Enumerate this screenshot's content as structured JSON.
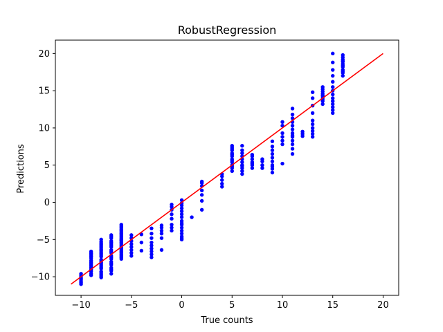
{
  "chart_data": {
    "type": "scatter",
    "title": "RobustRegression",
    "xlabel": "True counts",
    "ylabel": "Predictions",
    "xlim": [
      -12.55,
      21.55
    ],
    "ylim": [
      -12.5,
      21.8
    ],
    "x_ticks": [
      -10,
      -5,
      0,
      5,
      10,
      15,
      20
    ],
    "x_tick_labels": [
      "−10",
      "−5",
      "0",
      "5",
      "10",
      "15",
      "20"
    ],
    "y_ticks": [
      -10,
      -5,
      0,
      5,
      10,
      15,
      20
    ],
    "y_tick_labels": [
      "−10",
      "−5",
      "0",
      "5",
      "10",
      "15",
      "20"
    ],
    "grid": false,
    "colors": {
      "points": "#0000ff",
      "fit_line": "#ff0000",
      "axes": "#000000"
    },
    "series": [
      {
        "type": "scatter",
        "x": [
          -10,
          -10,
          -10,
          -10,
          -10,
          -10,
          -10,
          -10,
          -9,
          -9,
          -9,
          -9,
          -9,
          -9,
          -9,
          -9,
          -9,
          -9,
          -9,
          -9,
          -9,
          -9,
          -9,
          -9,
          -9,
          -9,
          -9,
          -9,
          -8,
          -8,
          -8,
          -8,
          -8,
          -8,
          -8,
          -8,
          -8,
          -8,
          -8,
          -8,
          -8,
          -8,
          -8,
          -8,
          -8,
          -8,
          -8,
          -8,
          -8,
          -8,
          -8,
          -8,
          -7,
          -7,
          -7,
          -7,
          -7,
          -7,
          -7,
          -7,
          -7,
          -7,
          -7,
          -7,
          -7,
          -7,
          -7,
          -7,
          -7,
          -7,
          -7,
          -7,
          -7,
          -6,
          -6,
          -6,
          -6,
          -6,
          -6,
          -6,
          -6,
          -6,
          -6,
          -6,
          -6,
          -6,
          -6,
          -6,
          -6,
          -6,
          -6,
          -6,
          -6,
          -6,
          -6,
          -6,
          -6,
          -6,
          -5,
          -5,
          -5,
          -5,
          -5,
          -5,
          -5,
          -5,
          -4,
          -4,
          -4,
          -3,
          -3,
          -3,
          -3,
          -3,
          -3,
          -3,
          -3,
          -3,
          -2,
          -2,
          -2,
          -2,
          -2,
          -2,
          -1,
          -1,
          -1,
          -1,
          -1,
          -1,
          -1,
          -1,
          0,
          0,
          0,
          0,
          0,
          0,
          0,
          0,
          0,
          0,
          0,
          0,
          0,
          0,
          0,
          0,
          1,
          2,
          2,
          2,
          2,
          2,
          2,
          2,
          4,
          4,
          4,
          4,
          4,
          5,
          5,
          5,
          5,
          5,
          5,
          5,
          5,
          5,
          5,
          5,
          5,
          5,
          5,
          6,
          6,
          6,
          6,
          6,
          6,
          6,
          6,
          6,
          6,
          6,
          7,
          7,
          7,
          7,
          7,
          7,
          7,
          8,
          8,
          8,
          8,
          9,
          9,
          9,
          9,
          9,
          9,
          9,
          9,
          9,
          9,
          10,
          10,
          10,
          10,
          10,
          10,
          10,
          11,
          11,
          11,
          11,
          11,
          11,
          11,
          11,
          11,
          11,
          11,
          11,
          11,
          12,
          12,
          12,
          13,
          13,
          13,
          13,
          13,
          13,
          13,
          13,
          13,
          13,
          14,
          14,
          14,
          14,
          14,
          14,
          14,
          14,
          14,
          14,
          15,
          15,
          15,
          15,
          15,
          15,
          15,
          15,
          15,
          15,
          15,
          15,
          15,
          15,
          16,
          16,
          16,
          16,
          16,
          16,
          16,
          16,
          16,
          16,
          16,
          16
        ],
        "y": [
          -11.0,
          -10.8,
          -10.6,
          -10.4,
          -10.2,
          -10.0,
          -9.8,
          -9.6,
          -9.6,
          -9.3,
          -9.0,
          -8.7,
          -8.4,
          -8.1,
          -7.8,
          -7.5,
          -7.2,
          -6.9,
          -6.6,
          -9.8,
          -9.1,
          -8.5,
          -7.9,
          -7.3,
          -7.0,
          -6.8,
          -8.8,
          -8.2,
          -10.1,
          -9.7,
          -9.3,
          -8.9,
          -8.5,
          -8.1,
          -7.7,
          -7.3,
          -6.9,
          -6.5,
          -6.1,
          -5.7,
          -5.3,
          -9.5,
          -8.7,
          -7.9,
          -7.1,
          -6.3,
          -5.5,
          -9.9,
          -8.3,
          -6.7,
          -5.9,
          -5.0,
          -9.6,
          -9.2,
          -8.8,
          -8.4,
          -8.0,
          -7.6,
          -7.2,
          -6.8,
          -6.4,
          -6.0,
          -5.6,
          -5.2,
          -4.8,
          -4.4,
          -9.0,
          -8.2,
          -7.4,
          -6.6,
          -5.8,
          -5.4,
          -4.6,
          -7.6,
          -7.2,
          -6.8,
          -6.4,
          -6.0,
          -5.6,
          -5.2,
          -4.8,
          -4.4,
          -4.0,
          -3.6,
          -3.2,
          -3.0,
          -7.0,
          -6.2,
          -5.4,
          -4.6,
          -3.8,
          -3.4,
          -6.6,
          -5.8,
          -5.0,
          -4.2,
          -7.4,
          -5.1,
          -7.2,
          -6.8,
          -6.4,
          -6.0,
          -5.6,
          -5.2,
          -4.8,
          -4.4,
          -6.5,
          -5.4,
          -4.3,
          -7.4,
          -7.0,
          -6.6,
          -6.2,
          -5.8,
          -5.4,
          -4.8,
          -4.2,
          -3.5,
          -6.4,
          -4.8,
          -4.2,
          -3.8,
          -3.4,
          -3.1,
          -3.8,
          -3.0,
          -2.2,
          -1.6,
          -1.0,
          -0.6,
          -0.3,
          -3.4,
          -5.0,
          -4.6,
          -4.2,
          -3.8,
          -3.4,
          -3.0,
          -2.5,
          -2.0,
          -1.6,
          -1.2,
          -0.8,
          -0.4,
          -0.1,
          0.3,
          -4.8,
          -2.8,
          -2.0,
          -1.0,
          0.2,
          1.0,
          1.6,
          2.2,
          2.6,
          2.8,
          2.1,
          2.5,
          3.0,
          3.5,
          3.8,
          4.2,
          4.6,
          5.0,
          5.4,
          5.8,
          6.2,
          6.6,
          7.0,
          7.4,
          7.6,
          4.8,
          5.6,
          6.4,
          7.2,
          3.8,
          4.2,
          4.6,
          5.0,
          5.4,
          5.8,
          6.2,
          6.6,
          7.0,
          7.6,
          4.9,
          4.6,
          5.0,
          5.4,
          5.8,
          6.2,
          6.4,
          5.2,
          4.6,
          5.0,
          5.5,
          5.8,
          4.0,
          4.5,
          5.0,
          5.5,
          6.0,
          6.5,
          7.0,
          7.5,
          8.2,
          4.8,
          5.2,
          7.8,
          8.3,
          8.8,
          9.3,
          10.3,
          10.8,
          6.5,
          7.2,
          7.8,
          8.3,
          8.8,
          9.3,
          9.8,
          10.3,
          10.8,
          11.3,
          11.8,
          12.6,
          9.0,
          8.9,
          9.2,
          9.5,
          8.8,
          9.2,
          9.6,
          10.0,
          10.5,
          11.0,
          12.0,
          13.0,
          14.0,
          14.8,
          13.2,
          13.6,
          14.0,
          14.3,
          14.6,
          14.9,
          15.2,
          15.5,
          13.8,
          14.4,
          12.0,
          12.4,
          12.8,
          13.2,
          13.6,
          14.0,
          14.5,
          15.0,
          15.5,
          16.2,
          17.0,
          17.8,
          18.8,
          20.0,
          17.0,
          17.4,
          17.8,
          18.2,
          18.6,
          18.9,
          19.2,
          19.5,
          19.8,
          17.6,
          18.4,
          19.0
        ]
      },
      {
        "type": "line",
        "x": [
          -11,
          20
        ],
        "y": [
          -11,
          20
        ]
      }
    ]
  }
}
